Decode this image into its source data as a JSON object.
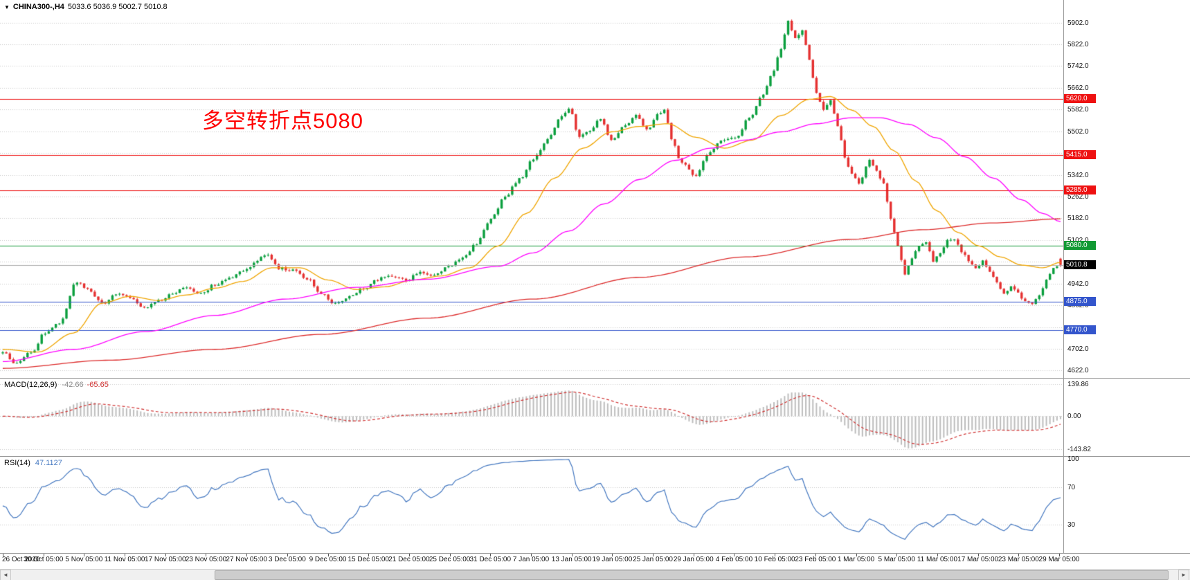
{
  "window": {
    "dropdown_icon": "▼",
    "symbol_period": "CHINA300-,H4",
    "ohlc_text": "5033.6 5036.9 5002.7 5010.8"
  },
  "annotation": {
    "text": "多空转折点5080",
    "color": "#FF0000"
  },
  "scrollbar": {
    "left_arrow": "◄",
    "right_arrow": "►"
  },
  "chart_data": {
    "type": "candlestick",
    "symbol": "CHINA300-",
    "timeframe": "H4",
    "title": "CHINA300-,H4 5033.6 5036.9 5002.7 5010.8",
    "last_bar_ohlc": {
      "open": 5033.6,
      "high": 5036.9,
      "low": 5002.7,
      "close": 5010.8
    },
    "bars": 300,
    "bar_volatility": 11,
    "candle_colors": {
      "up": "#0b9f3e",
      "down": "#e53030"
    },
    "x_labels": [
      "26 Oct 2020",
      "30 Oct 05:00",
      "5 Nov 05:00",
      "11 Nov 05:00",
      "17 Nov 05:00",
      "23 Nov 05:00",
      "27 Nov 05:00",
      "3 Dec 05:00",
      "9 Dec 05:00",
      "15 Dec 05:00",
      "21 Dec 05:00",
      "25 Dec 05:00",
      "31 Dec 05:00",
      "7 Jan 05:00",
      "13 Jan 05:00",
      "19 Jan 05:00",
      "25 Jan 05:00",
      "29 Jan 05:00",
      "4 Feb 05:00",
      "10 Feb 05:00",
      "23 Feb 05:00",
      "1 Mar 05:00",
      "5 Mar 05:00",
      "11 Mar 05:00",
      "17 Mar 05:00",
      "23 Mar 05:00",
      "29 Mar 05:00"
    ],
    "y_axis": {
      "price_min": 4595,
      "price_max": 5985,
      "grid_start": 4622,
      "grid_step": 80,
      "grid_end": 5902,
      "labels": [
        {
          "price": 5902,
          "text": "5902.0"
        },
        {
          "price": 5822,
          "text": "5822.0"
        },
        {
          "price": 5742,
          "text": "5742.0"
        },
        {
          "price": 5662,
          "text": "5662.0"
        },
        {
          "price": 5582,
          "text": "5582.0"
        },
        {
          "price": 5502,
          "text": "5502.0"
        },
        {
          "price": 5342,
          "text": "5342.0"
        },
        {
          "price": 5262,
          "text": "5262.0"
        },
        {
          "price": 5182,
          "text": "5182.0"
        },
        {
          "price": 5102,
          "text": "5102.0"
        },
        {
          "price": 4942,
          "text": "4942.0"
        },
        {
          "price": 4862,
          "text": "4862.0"
        },
        {
          "price": 4702,
          "text": "4702.0"
        },
        {
          "price": 4622,
          "text": "4622.0"
        }
      ]
    },
    "horizontal_lines": [
      {
        "price": 5620,
        "text": "5620.0",
        "color": "#ee1111"
      },
      {
        "price": 5415,
        "text": "5415.0",
        "color": "#ee1111"
      },
      {
        "price": 5285,
        "text": "5285.0",
        "color": "#ee1111"
      },
      {
        "price": 5080,
        "text": "5080.0",
        "color": "#119933"
      },
      {
        "price": 4875,
        "text": "4875.0",
        "color": "#3355cc"
      },
      {
        "price": 4770,
        "text": "4770.0",
        "color": "#3355cc"
      }
    ],
    "bid": {
      "price": 5010.8,
      "text": "5010.8",
      "line_color": "#aaaaaa",
      "tag_color": "#000000"
    },
    "price_keypoints": [
      [
        0,
        4690
      ],
      [
        4,
        4645
      ],
      [
        8,
        4690
      ],
      [
        12,
        4760
      ],
      [
        16,
        4800
      ],
      [
        21,
        4950
      ],
      [
        24,
        4920
      ],
      [
        28,
        4868
      ],
      [
        32,
        4905
      ],
      [
        36,
        4890
      ],
      [
        40,
        4855
      ],
      [
        44,
        4880
      ],
      [
        48,
        4905
      ],
      [
        52,
        4928
      ],
      [
        56,
        4905
      ],
      [
        60,
        4938
      ],
      [
        64,
        4962
      ],
      [
        68,
        4985
      ],
      [
        72,
        5030
      ],
      [
        75,
        5048
      ],
      [
        78,
        4998
      ],
      [
        82,
        4990
      ],
      [
        86,
        4962
      ],
      [
        90,
        4905
      ],
      [
        94,
        4868
      ],
      [
        98,
        4895
      ],
      [
        102,
        4925
      ],
      [
        106,
        4958
      ],
      [
        110,
        4972
      ],
      [
        114,
        4955
      ],
      [
        118,
        4982
      ],
      [
        122,
        4975
      ],
      [
        126,
        5005
      ],
      [
        130,
        5035
      ],
      [
        134,
        5090
      ],
      [
        138,
        5180
      ],
      [
        142,
        5265
      ],
      [
        146,
        5325
      ],
      [
        150,
        5400
      ],
      [
        154,
        5470
      ],
      [
        158,
        5555
      ],
      [
        160,
        5590
      ],
      [
        163,
        5480
      ],
      [
        166,
        5505
      ],
      [
        169,
        5550
      ],
      [
        172,
        5475
      ],
      [
        176,
        5522
      ],
      [
        179,
        5565
      ],
      [
        182,
        5505
      ],
      [
        185,
        5560
      ],
      [
        187,
        5585
      ],
      [
        189,
        5470
      ],
      [
        192,
        5385
      ],
      [
        196,
        5340
      ],
      [
        199,
        5415
      ],
      [
        203,
        5465
      ],
      [
        207,
        5478
      ],
      [
        211,
        5548
      ],
      [
        215,
        5640
      ],
      [
        218,
        5730
      ],
      [
        220,
        5810
      ],
      [
        222,
        5910
      ],
      [
        224,
        5840
      ],
      [
        226,
        5868
      ],
      [
        228,
        5762
      ],
      [
        230,
        5640
      ],
      [
        232,
        5585
      ],
      [
        234,
        5620
      ],
      [
        236,
        5520
      ],
      [
        238,
        5408
      ],
      [
        240,
        5345
      ],
      [
        242,
        5310
      ],
      [
        245,
        5398
      ],
      [
        247,
        5352
      ],
      [
        249,
        5315
      ],
      [
        251,
        5180
      ],
      [
        253,
        5080
      ],
      [
        255,
        4975
      ],
      [
        257,
        5035
      ],
      [
        259,
        5082
      ],
      [
        261,
        5098
      ],
      [
        263,
        5028
      ],
      [
        265,
        5058
      ],
      [
        267,
        5098
      ],
      [
        269,
        5105
      ],
      [
        271,
        5062
      ],
      [
        273,
        5028
      ],
      [
        275,
        5000
      ],
      [
        277,
        5025
      ],
      [
        279,
        4982
      ],
      [
        281,
        4948
      ],
      [
        283,
        4905
      ],
      [
        285,
        4928
      ],
      [
        287,
        4905
      ],
      [
        289,
        4878
      ],
      [
        291,
        4862
      ],
      [
        293,
        4900
      ],
      [
        295,
        4958
      ],
      [
        297,
        4995
      ],
      [
        299,
        5011
      ]
    ],
    "moving_averages": [
      {
        "name": "ma-fast",
        "color": "#f0a500",
        "points": [
          [
            0,
            4700
          ],
          [
            10,
            4690
          ],
          [
            20,
            4760
          ],
          [
            28,
            4870
          ],
          [
            36,
            4895
          ],
          [
            44,
            4880
          ],
          [
            52,
            4900
          ],
          [
            60,
            4925
          ],
          [
            68,
            4950
          ],
          [
            76,
            5000
          ],
          [
            84,
            5000
          ],
          [
            92,
            4955
          ],
          [
            100,
            4920
          ],
          [
            108,
            4930
          ],
          [
            116,
            4955
          ],
          [
            124,
            4970
          ],
          [
            132,
            5000
          ],
          [
            140,
            5080
          ],
          [
            148,
            5200
          ],
          [
            156,
            5330
          ],
          [
            164,
            5440
          ],
          [
            172,
            5500
          ],
          [
            180,
            5520
          ],
          [
            188,
            5530
          ],
          [
            196,
            5480
          ],
          [
            204,
            5440
          ],
          [
            212,
            5470
          ],
          [
            220,
            5560
          ],
          [
            228,
            5620
          ],
          [
            234,
            5630
          ],
          [
            240,
            5580
          ],
          [
            246,
            5520
          ],
          [
            252,
            5430
          ],
          [
            258,
            5320
          ],
          [
            264,
            5210
          ],
          [
            270,
            5130
          ],
          [
            276,
            5080
          ],
          [
            282,
            5040
          ],
          [
            288,
            5010
          ],
          [
            294,
            5000
          ],
          [
            299,
            5020
          ]
        ]
      },
      {
        "name": "ma-mid",
        "color": "#ff00ff",
        "points": [
          [
            0,
            4655
          ],
          [
            20,
            4700
          ],
          [
            40,
            4765
          ],
          [
            60,
            4825
          ],
          [
            80,
            4885
          ],
          [
            100,
            4928
          ],
          [
            120,
            4958
          ],
          [
            140,
            5005
          ],
          [
            150,
            5055
          ],
          [
            160,
            5135
          ],
          [
            170,
            5235
          ],
          [
            180,
            5325
          ],
          [
            190,
            5395
          ],
          [
            200,
            5440
          ],
          [
            210,
            5470
          ],
          [
            220,
            5500
          ],
          [
            230,
            5530
          ],
          [
            240,
            5552
          ],
          [
            248,
            5552
          ],
          [
            256,
            5528
          ],
          [
            264,
            5478
          ],
          [
            272,
            5408
          ],
          [
            280,
            5330
          ],
          [
            288,
            5250
          ],
          [
            294,
            5200
          ],
          [
            299,
            5170
          ]
        ]
      },
      {
        "name": "ma-slow",
        "color": "#dd2b2b",
        "points": [
          [
            0,
            4630
          ],
          [
            30,
            4660
          ],
          [
            60,
            4700
          ],
          [
            90,
            4755
          ],
          [
            120,
            4815
          ],
          [
            150,
            4885
          ],
          [
            180,
            4965
          ],
          [
            210,
            5040
          ],
          [
            240,
            5105
          ],
          [
            260,
            5140
          ],
          [
            280,
            5165
          ],
          [
            299,
            5180
          ]
        ]
      }
    ],
    "indicators": {
      "macd": {
        "name": "MACD(12,26,9)",
        "value_main": "-42.66",
        "value_signal": "-65.65",
        "fast": 12,
        "slow": 26,
        "signal": 9,
        "axis_labels": [
          {
            "value": 139.86,
            "text": "139.86"
          },
          {
            "value": 0,
            "text": "0.00"
          },
          {
            "value": -143.82,
            "text": "-143.82"
          }
        ],
        "range": [
          -175,
          165
        ],
        "histogram_color": "#bdbdbd",
        "signal_color": "#d03030"
      },
      "rsi": {
        "name": "RSI(14)",
        "value": "47.1127",
        "period": 14,
        "axis_labels": [
          {
            "value": 100,
            "text": "100"
          },
          {
            "value": 70,
            "text": "70"
          },
          {
            "value": 30,
            "text": "30"
          }
        ],
        "levels": [
          70,
          30
        ],
        "range": [
          0,
          102
        ],
        "line_color": "#4377c0"
      }
    }
  }
}
